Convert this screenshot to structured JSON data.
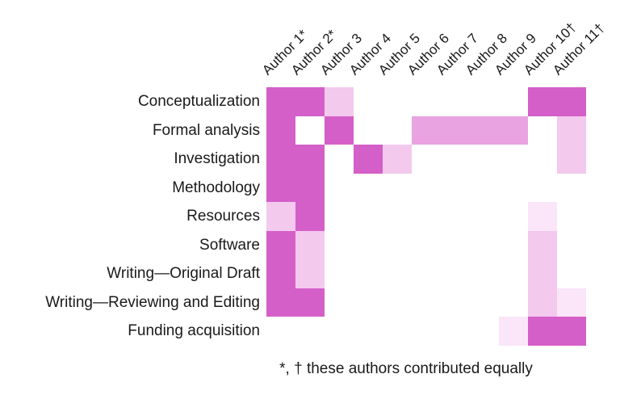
{
  "chart_data": {
    "type": "heatmap",
    "title": "",
    "columns": [
      "Author 1*",
      "Author 2*",
      "Author 3",
      "Author 4",
      "Author 5",
      "Author 6",
      "Author 7",
      "Author 8",
      "Author 9",
      "Author 10†",
      "Author 11†"
    ],
    "rows": [
      "Conceptualization",
      "Formal analysis",
      "Investigation",
      "Methodology",
      "Resources",
      "Software",
      "Writing—Original Draft",
      "Writing—Reviewing and Editing",
      "Funding acquisition"
    ],
    "values": [
      [
        4,
        4,
        2,
        0,
        0,
        0,
        0,
        0,
        0,
        4,
        4
      ],
      [
        4,
        0,
        4,
        0,
        0,
        3,
        3,
        3,
        3,
        0,
        2
      ],
      [
        4,
        4,
        0,
        4,
        2,
        0,
        0,
        0,
        0,
        0,
        2
      ],
      [
        4,
        4,
        0,
        0,
        0,
        0,
        0,
        0,
        0,
        0,
        0
      ],
      [
        2,
        4,
        0,
        0,
        0,
        0,
        0,
        0,
        0,
        1,
        0
      ],
      [
        4,
        2,
        0,
        0,
        0,
        0,
        0,
        0,
        0,
        2,
        0
      ],
      [
        4,
        2,
        0,
        0,
        0,
        0,
        0,
        0,
        0,
        2,
        0
      ],
      [
        4,
        4,
        0,
        0,
        0,
        0,
        0,
        0,
        0,
        2,
        1
      ],
      [
        0,
        0,
        0,
        0,
        0,
        0,
        0,
        0,
        1,
        4,
        4
      ]
    ],
    "palette": [
      "#ffffff",
      "#fae6f8",
      "#f3c9ee",
      "#e9a3e0",
      "#d45fc8"
    ],
    "legend_position": "none",
    "grid": false,
    "footnote": "*, † these authors contributed equally"
  }
}
